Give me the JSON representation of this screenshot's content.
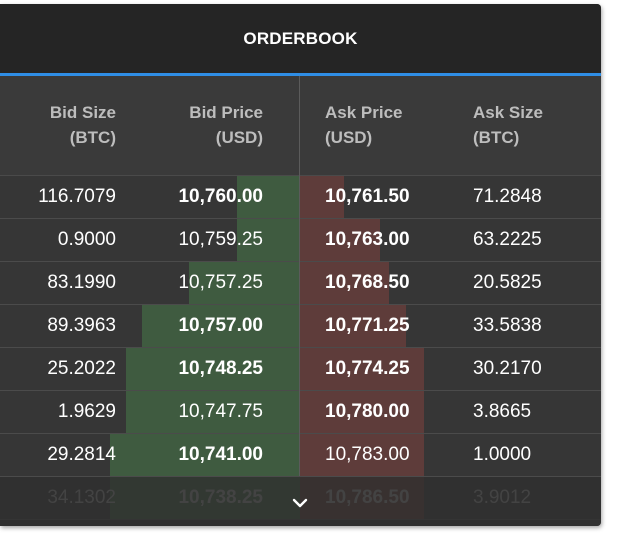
{
  "header": {
    "title": "ORDERBOOK"
  },
  "columns": {
    "bid_size": [
      "Bid Size",
      "(BTC)"
    ],
    "bid_price": [
      "Bid Price",
      "(USD)"
    ],
    "ask_price": [
      "Ask Price",
      "(USD)"
    ],
    "ask_size": [
      "Ask Size",
      "(BTC)"
    ]
  },
  "rows": [
    {
      "bid_size": "116.7079",
      "bid_price": "10,760.00",
      "bid_bold": true,
      "ask_price": "10,761.50",
      "ask_bold": true,
      "ask_size": "71.2848",
      "bid_depth": 0.04,
      "ask_depth": 0.05
    },
    {
      "bid_size": "0.9000",
      "bid_price": "10,759.25",
      "bid_bold": false,
      "ask_price": "10,763.00",
      "ask_bold": true,
      "ask_size": "63.2225",
      "bid_depth": 0.04,
      "ask_depth": 0.09
    },
    {
      "bid_size": "83.1990",
      "bid_price": "10,757.25",
      "bid_bold": false,
      "ask_price": "10,768.50",
      "ask_bold": true,
      "ask_size": "20.5825",
      "bid_depth": 0.07,
      "ask_depth": 0.1
    },
    {
      "bid_size": "89.3963",
      "bid_price": "10,757.00",
      "bid_bold": true,
      "ask_price": "10,771.25",
      "ask_bold": true,
      "ask_size": "33.5838",
      "bid_depth": 0.1,
      "ask_depth": 0.12
    },
    {
      "bid_size": "25.2022",
      "bid_price": "10,748.25",
      "bid_bold": true,
      "ask_price": "10,774.25",
      "ask_bold": true,
      "ask_size": "30.2170",
      "bid_depth": 0.11,
      "ask_depth": 0.14
    },
    {
      "bid_size": "1.9629",
      "bid_price": "10,747.75",
      "bid_bold": false,
      "ask_price": "10,780.00",
      "ask_bold": true,
      "ask_size": "3.8665",
      "bid_depth": 0.11,
      "ask_depth": 0.14
    },
    {
      "bid_size": "29.2814",
      "bid_price": "10,741.00",
      "bid_bold": true,
      "ask_price": "10,783.00",
      "ask_bold": false,
      "ask_size": "1.0000",
      "bid_depth": 0.12,
      "ask_depth": 0.14
    },
    {
      "bid_size": "34.1302",
      "bid_price": "10,738.25",
      "bid_bold": true,
      "ask_price": "10,786.50",
      "ask_bold": true,
      "ask_size": "3.9012",
      "bid_depth": 0.12,
      "ask_depth": 0.14
    }
  ],
  "icons": {
    "expand": "chevron-down-icon"
  },
  "colors": {
    "accent": "#2f8ee6",
    "bid_bar": "#3f5b40",
    "ask_bar": "#5e3c3a"
  }
}
